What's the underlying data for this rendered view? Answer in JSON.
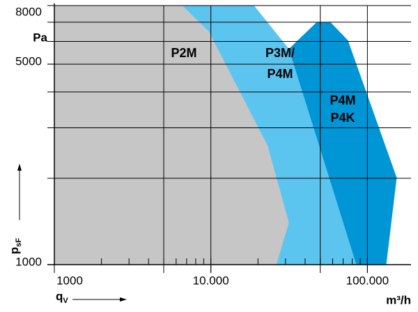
{
  "chart_data": {
    "type": "region",
    "x_label": {
      "main": "q",
      "sub": "V"
    },
    "x_unit": "m³/h",
    "y_label": {
      "main": "p",
      "sub": "sF"
    },
    "y_unit": "Pa",
    "log_x": true,
    "log_y": true,
    "xlim": [
      1000,
      190000
    ],
    "ylim": [
      1000,
      8000
    ],
    "xticks": [
      1000,
      {
        "value": 10000,
        "label": "10.000"
      },
      {
        "value": 100000,
        "label": "100.000"
      }
    ],
    "xminor": [
      2000,
      3000,
      4000,
      5000,
      6000,
      7000,
      8000,
      9000,
      20000,
      30000,
      40000,
      50000,
      60000,
      70000,
      80000,
      90000
    ],
    "xgrid": [
      5000,
      10000,
      50000,
      100000
    ],
    "yticks": [
      1000,
      5000,
      8000
    ],
    "ygrid": [
      2000,
      3000,
      4000,
      5000,
      6000,
      7000,
      8000
    ],
    "regions": [
      {
        "labels": [
          "P3M/",
          "P4M"
        ],
        "color": "#5cc5ef",
        "x": [
          1000,
          18900,
          31500,
          84900,
          1000
        ],
        "y": [
          8000,
          8000,
          5650,
          1000,
          1000
        ]
      },
      {
        "labels": [
          "P4M",
          "P4K"
        ],
        "color": "#0096d6",
        "x": [
          31500,
          47400,
          58100,
          75100,
          153900,
          132000,
          84900
        ],
        "y": [
          5650,
          7000,
          7000,
          6050,
          2010,
          1000,
          1000
        ]
      },
      {
        "labels": [
          "P2M"
        ],
        "color": "#c6c6c6",
        "x": [
          1000,
          1000,
          6580,
          9700,
          23100,
          31500,
          26200
        ],
        "y": [
          1000,
          8000,
          8000,
          6500,
          2590,
          1400,
          1000
        ]
      }
    ]
  }
}
